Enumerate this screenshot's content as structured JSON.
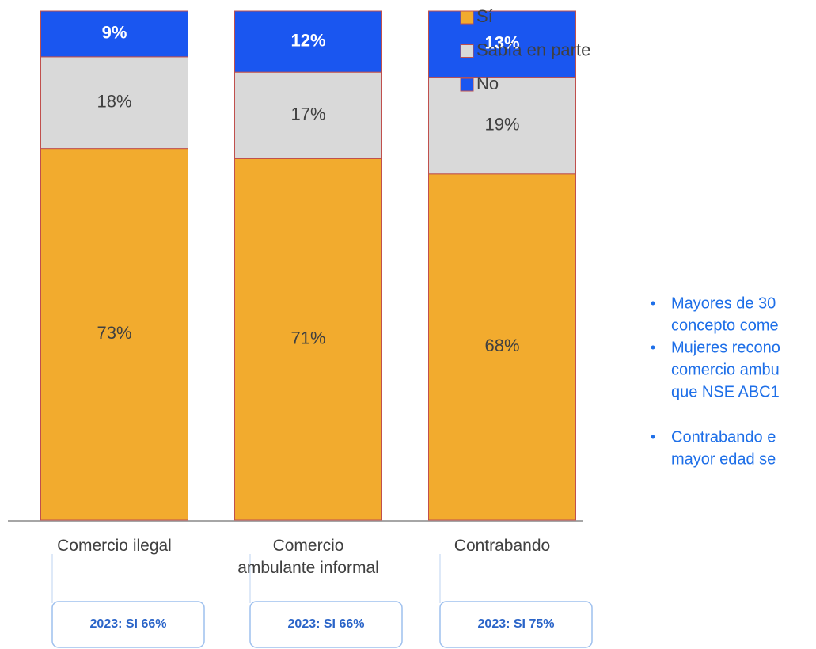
{
  "chart_data": {
    "type": "bar",
    "stacked": true,
    "categories": [
      "Comercio ilegal",
      "Comercio ambulante informal",
      "Contrabando"
    ],
    "series": [
      {
        "name": "Sí",
        "color": "#f2ab2e",
        "values": [
          73,
          71,
          68
        ],
        "value_labels": [
          "73%",
          "71%",
          "68%"
        ]
      },
      {
        "name": "Sabía en parte",
        "color": "#d9d9d9",
        "values": [
          18,
          17,
          19
        ],
        "value_labels": [
          "18%",
          "17%",
          "19%"
        ]
      },
      {
        "name": "No",
        "color": "#1a56f0",
        "values": [
          9,
          12,
          13
        ],
        "value_labels": [
          "9%",
          "12%",
          "13%"
        ]
      }
    ],
    "ylim": [
      0,
      100
    ],
    "legend": "top-right"
  },
  "notes": [
    "2023:  SI 66%",
    "2023: SI 66%",
    "2023: SI 75%"
  ],
  "bullets": [
    [
      "Mayores de 30",
      "concepto come"
    ],
    [
      "Mujeres recono",
      "comercio ambu",
      "que NSE ABC1"
    ],
    [
      "Contrabando e",
      "mayor edad se"
    ]
  ]
}
